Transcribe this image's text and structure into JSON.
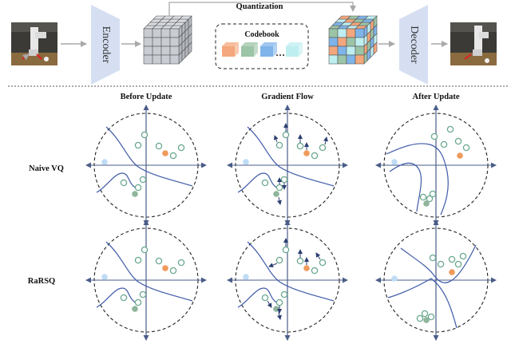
{
  "pipeline": {
    "encoder_label": "Encoder",
    "decoder_label": "Decoder",
    "quantization_label": "Quantization",
    "codebook_label": "Codebook",
    "codebook_ellipsis": "…",
    "colors": {
      "orange": "#f4a77c",
      "green": "#9cc4a6",
      "blue": "#7fb4ea",
      "cyan": "#bfeef0",
      "trapezoid": "#d6dff2",
      "cube_gray": "#c9cdd3",
      "arrow": "#a9a9a9"
    }
  },
  "columns": [
    "Before Update",
    "Gradient Flow",
    "After Update"
  ],
  "rows": [
    "Naive VQ",
    "RaRSQ"
  ],
  "colors": {
    "axis": "#4a5d88",
    "boundary": "#3f5aa8",
    "ring": "#6aa88e",
    "fill_green": "#8fb59c",
    "fill_orange": "#ef9a5c",
    "fill_blue": "#bfdcf5",
    "grad_arrow": "#2c3e70"
  }
}
